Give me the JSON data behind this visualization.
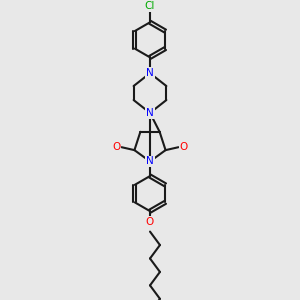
{
  "background_color": "#e8e8e8",
  "bond_color": "#1a1a1a",
  "nitrogen_color": "#0000ff",
  "oxygen_color": "#ff0000",
  "chlorine_color": "#00aa00",
  "line_width": 1.5,
  "fig_w": 3.0,
  "fig_h": 3.0,
  "dpi": 100,
  "xlim": [
    0.5,
    2.8
  ],
  "ylim": [
    0.1,
    5.2
  ]
}
